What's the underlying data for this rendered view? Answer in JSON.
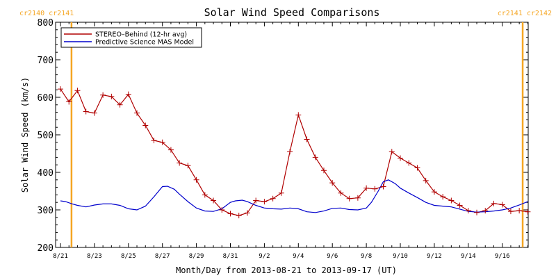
{
  "chart_data": {
    "type": "line",
    "title": "Solar Wind Speed Comparisons",
    "xlabel": "Month/Day from 2013-08-21 to 2013-09-17 (UT)",
    "ylabel": "Solar Wind Speed (km/s)",
    "x_start": "2013-08-21",
    "x_end": "2013-09-17",
    "xlim_days": [
      0,
      27.5
    ],
    "ylim": [
      200,
      800
    ],
    "y_ticks": [
      200,
      300,
      400,
      500,
      600,
      700,
      800
    ],
    "x_tick_labels": [
      "8/21",
      "8/23",
      "8/25",
      "8/27",
      "8/29",
      "8/31",
      "9/2",
      "9/4",
      "9/6",
      "9/8",
      "9/10",
      "9/12",
      "9/14",
      "9/16"
    ],
    "x_tick_days": [
      0,
      2,
      4,
      6,
      8,
      10,
      12,
      14,
      16,
      18,
      20,
      22,
      24,
      26
    ],
    "carrington_markers": [
      {
        "label": "cr2140 cr2141",
        "day": 0.65,
        "color": "#f5a623",
        "label_align": "start"
      },
      {
        "label": "cr2141 cr2142",
        "day": 27.2,
        "color": "#f5a623",
        "label_align": "end"
      }
    ],
    "legend": {
      "placement": "top-left"
    },
    "series": [
      {
        "name": "STEREO–Behind (12-hr avg)",
        "color": "#b00000",
        "marker": "plus",
        "x": [
          0,
          0.5,
          1,
          1.5,
          2,
          2.5,
          3,
          3.5,
          4,
          4.5,
          5,
          5.5,
          6,
          6.5,
          7,
          7.5,
          8,
          8.5,
          9,
          9.5,
          10,
          10.5,
          11,
          11.5,
          12,
          12.5,
          13,
          13.5,
          14,
          14.5,
          15,
          15.5,
          16,
          16.5,
          17,
          17.5,
          18,
          18.5,
          19,
          19.5,
          20,
          20.5,
          21,
          21.5,
          22,
          22.5,
          23,
          23.5,
          24,
          24.5,
          25,
          25.5,
          26,
          26.5,
          27,
          27.5
        ],
        "y": [
          622,
          588,
          618,
          562,
          558,
          606,
          602,
          580,
          608,
          558,
          525,
          485,
          480,
          460,
          425,
          418,
          380,
          340,
          325,
          300,
          290,
          285,
          292,
          325,
          322,
          330,
          345,
          455,
          553,
          488,
          440,
          405,
          372,
          345,
          330,
          332,
          358,
          356,
          362,
          455,
          438,
          425,
          412,
          378,
          348,
          335,
          325,
          312,
          298,
          293,
          298,
          317,
          314,
          296,
          298,
          295
        ]
      },
      {
        "name": "Predictive Science MAS Model",
        "color": "#0000cc",
        "marker": "none",
        "x": [
          0,
          0.3,
          0.7,
          1,
          1.5,
          2,
          2.5,
          3,
          3.5,
          4,
          4.5,
          5,
          5.5,
          6,
          6.3,
          6.7,
          7,
          7.5,
          8,
          8.5,
          9,
          9.5,
          10,
          10.3,
          10.7,
          11,
          11.5,
          12,
          12.5,
          13,
          13.5,
          14,
          14.5,
          15,
          15.5,
          16,
          16.5,
          17,
          17.5,
          18,
          18.3,
          18.7,
          19,
          19.3,
          19.7,
          20,
          20.5,
          21,
          21.5,
          22,
          22.5,
          23,
          23.5,
          24,
          24.5,
          25,
          25.5,
          26,
          26.5,
          27,
          27.5
        ],
        "y": [
          324,
          322,
          316,
          312,
          308,
          313,
          316,
          316,
          312,
          303,
          300,
          310,
          335,
          362,
          363,
          355,
          342,
          322,
          305,
          297,
          296,
          303,
          320,
          324,
          326,
          322,
          312,
          305,
          303,
          302,
          305,
          303,
          295,
          293,
          297,
          304,
          305,
          301,
          300,
          305,
          320,
          350,
          375,
          380,
          370,
          358,
          345,
          333,
          320,
          312,
          310,
          308,
          302,
          296,
          294,
          295,
          297,
          300,
          305,
          313,
          322
        ]
      }
    ]
  }
}
